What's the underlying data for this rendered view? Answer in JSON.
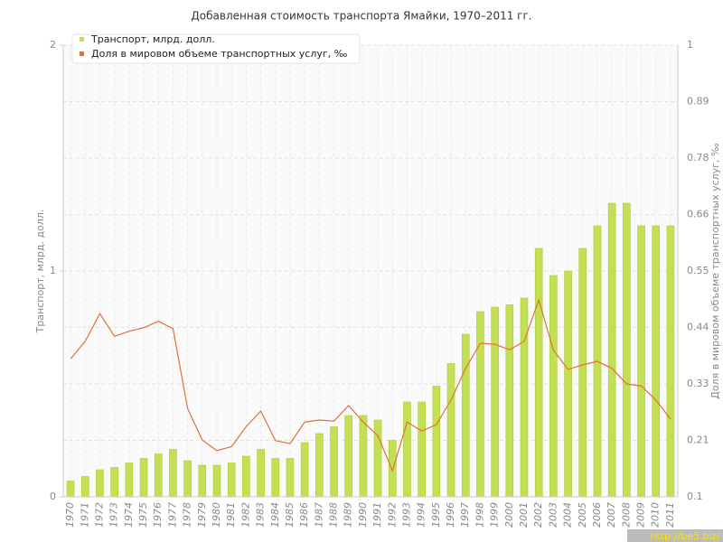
{
  "chart_data": {
    "type": "bar-line",
    "title": "Добавленная стоимость транспорта Ямайки, 1970–2011 гг.",
    "y_label": "Транспорт, млрд. долл.",
    "y2_label": "Доля в мировом объеме транспортных услуг, ‰",
    "categories": [
      "1970",
      "1971",
      "1972",
      "1973",
      "1974",
      "1975",
      "1976",
      "1977",
      "1978",
      "1979",
      "1980",
      "1981",
      "1982",
      "1983",
      "1984",
      "1985",
      "1986",
      "1987",
      "1988",
      "1989",
      "1990",
      "1991",
      "1992",
      "1993",
      "1994",
      "1995",
      "1996",
      "1997",
      "1998",
      "1999",
      "2000",
      "2001",
      "2002",
      "2003",
      "2004",
      "2005",
      "2006",
      "2007",
      "2008",
      "2009",
      "2010",
      "2011"
    ],
    "series": [
      {
        "name": "Транспорт, млрд. долл.",
        "type": "bar",
        "color": "#c3df55",
        "values": [
          0.07,
          0.09,
          0.12,
          0.13,
          0.15,
          0.17,
          0.19,
          0.21,
          0.16,
          0.14,
          0.14,
          0.15,
          0.18,
          0.21,
          0.17,
          0.17,
          0.24,
          0.28,
          0.31,
          0.36,
          0.36,
          0.34,
          0.25,
          0.42,
          0.42,
          0.49,
          0.59,
          0.72,
          0.82,
          0.84,
          0.85,
          0.88,
          1.1,
          0.98,
          1.0,
          1.1,
          1.2,
          1.3,
          1.3,
          1.2,
          1.2,
          1.2
        ]
      },
      {
        "name": "Доля в мировом объеме транспортных услуг, ‰",
        "type": "line",
        "axis": "y2",
        "color": "#e0703c",
        "values": [
          0.375,
          0.41,
          0.465,
          0.42,
          0.43,
          0.437,
          0.45,
          0.435,
          0.276,
          0.213,
          0.192,
          0.2,
          0.24,
          0.271,
          0.212,
          0.206,
          0.249,
          0.253,
          0.251,
          0.282,
          0.249,
          0.222,
          0.152,
          0.249,
          0.231,
          0.244,
          0.293,
          0.356,
          0.406,
          0.404,
          0.393,
          0.41,
          0.492,
          0.392,
          0.354,
          0.363,
          0.37,
          0.356,
          0.325,
          0.321,
          0.293,
          0.255
        ]
      }
    ],
    "ylim": [
      0,
      2
    ],
    "yticks": [
      0,
      1,
      2
    ],
    "y2lim": [
      0.1,
      1
    ],
    "y2ticks": [
      0.1,
      {
        "value": 0.2125,
        "label": "0.21"
      },
      {
        "value": 0.325,
        "label": "0.33"
      },
      {
        "value": 0.4375,
        "label": "0.44"
      },
      0.55,
      {
        "value": 0.6625,
        "label": "0.66"
      },
      {
        "value": 0.775,
        "label": "0.78"
      },
      {
        "value": 0.8875,
        "label": "0.89"
      },
      1
    ],
    "grid": true,
    "legend": "top-left",
    "watermark": "http://be5.biz/"
  }
}
